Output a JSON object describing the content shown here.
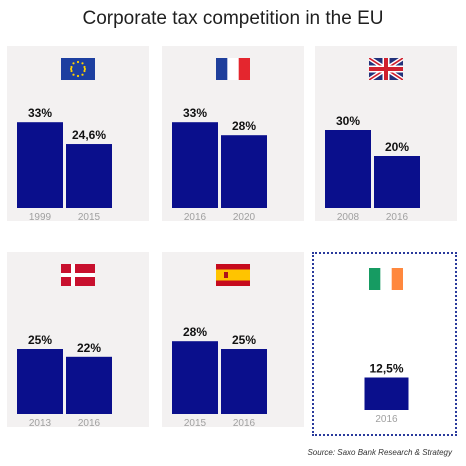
{
  "title": "Corporate tax competition in the EU",
  "source": "Source: Saxo Bank Research & Strategy",
  "colors": {
    "bar": "#0a0f8c",
    "panel": "#f3f1f1",
    "year": "#a0a0a0",
    "label": "#111111"
  },
  "chart_data": [
    {
      "type": "bar",
      "flag": "eu-flag-icon",
      "categories": [
        "1999",
        "2015"
      ],
      "values": [
        33,
        24.6
      ],
      "labels": [
        "33%",
        "24,6%"
      ]
    },
    {
      "type": "bar",
      "flag": "france-flag-icon",
      "categories": [
        "2016",
        "2020"
      ],
      "values": [
        33,
        28
      ],
      "labels": [
        "33%",
        "28%"
      ]
    },
    {
      "type": "bar",
      "flag": "uk-flag-icon",
      "categories": [
        "2008",
        "2016"
      ],
      "values": [
        30,
        20
      ],
      "labels": [
        "30%",
        "20%"
      ]
    },
    {
      "type": "bar",
      "flag": "denmark-flag-icon",
      "categories": [
        "2013",
        "2016"
      ],
      "values": [
        25,
        22
      ],
      "labels": [
        "25%",
        "22%"
      ]
    },
    {
      "type": "bar",
      "flag": "spain-flag-icon",
      "categories": [
        "2015",
        "2016"
      ],
      "values": [
        28,
        25
      ],
      "labels": [
        "28%",
        "25%"
      ]
    },
    {
      "type": "bar",
      "flag": "ireland-flag-icon",
      "highlight": true,
      "categories": [
        "2016"
      ],
      "values": [
        12.5
      ],
      "labels": [
        "12,5%"
      ]
    }
  ]
}
